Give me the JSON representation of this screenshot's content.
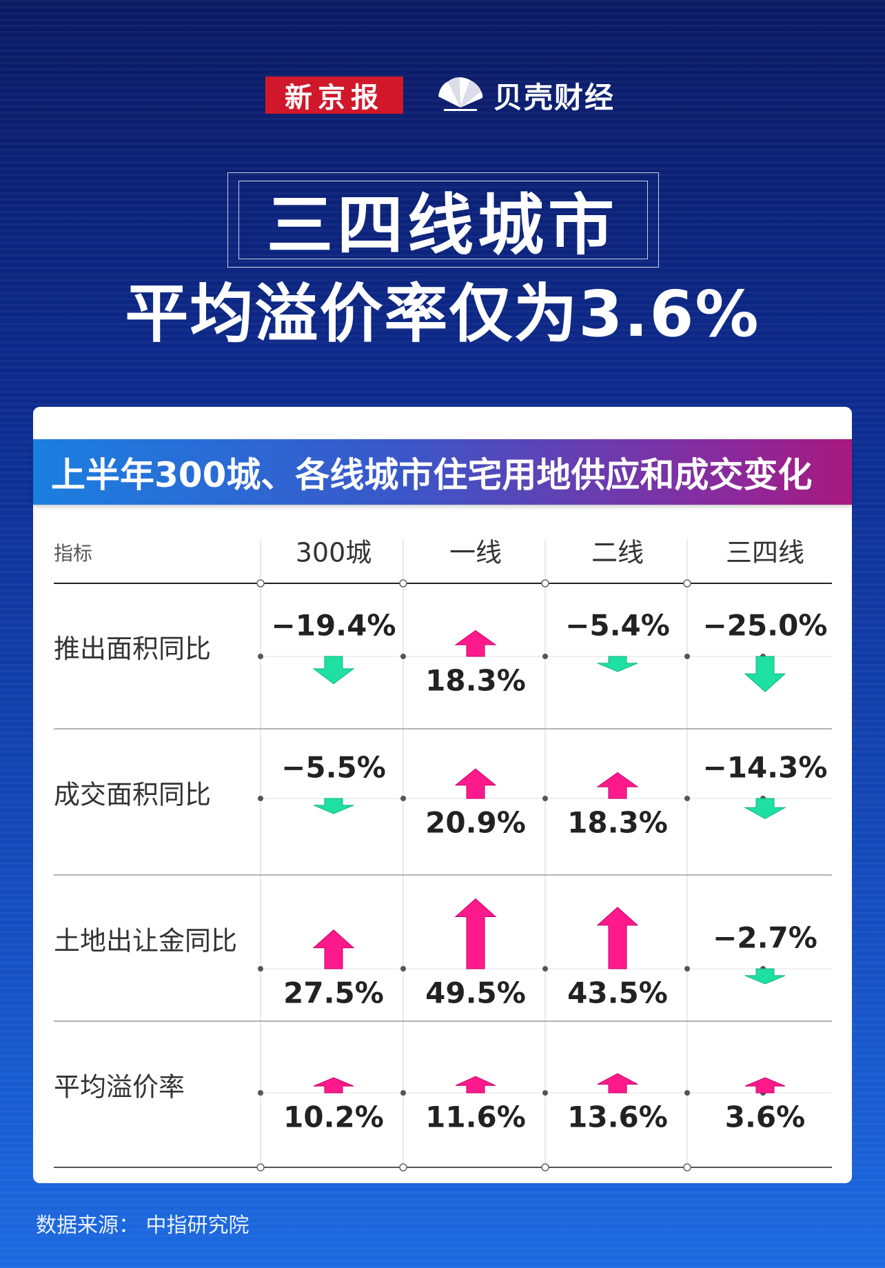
{
  "header": {
    "logo_left": "新京报",
    "logo_right": "贝壳财经"
  },
  "title": {
    "line1": "三四线城市",
    "line2": "平均溢价率仅为3.6%"
  },
  "colors": {
    "up": "#ff1a8c",
    "down": "#1ee0a0",
    "banner_start": "#1b7fe0",
    "banner_end": "#a8197e",
    "logo_red": "#d0182a"
  },
  "banner": "上半年300城、各线城市住宅用地供应和成交变化",
  "source": "数据来源：  中指研究院",
  "chart_data": {
    "type": "table",
    "header_label": "指标",
    "columns": [
      "300城",
      "一线",
      "二线",
      "三四线"
    ],
    "rows": [
      {
        "label": "推出面积同比",
        "values": [
          -19.4,
          18.3,
          -5.4,
          -25.0
        ],
        "text": [
          "−19.4%",
          "18.3%",
          "−5.4%",
          "−25.0%"
        ]
      },
      {
        "label": "成交面积同比",
        "values": [
          -5.5,
          20.9,
          18.3,
          -14.3
        ],
        "text": [
          "−5.5%",
          "20.9%",
          "18.3%",
          "−14.3%"
        ]
      },
      {
        "label": "土地出让金同比",
        "values": [
          27.5,
          49.5,
          43.5,
          -2.7
        ],
        "text": [
          "27.5%",
          "49.5%",
          "43.5%",
          "−2.7%"
        ]
      },
      {
        "label": "平均溢价率",
        "values": [
          10.2,
          11.6,
          13.6,
          3.6
        ],
        "text": [
          "10.2%",
          "11.6%",
          "13.6%",
          "3.6%"
        ]
      }
    ]
  }
}
